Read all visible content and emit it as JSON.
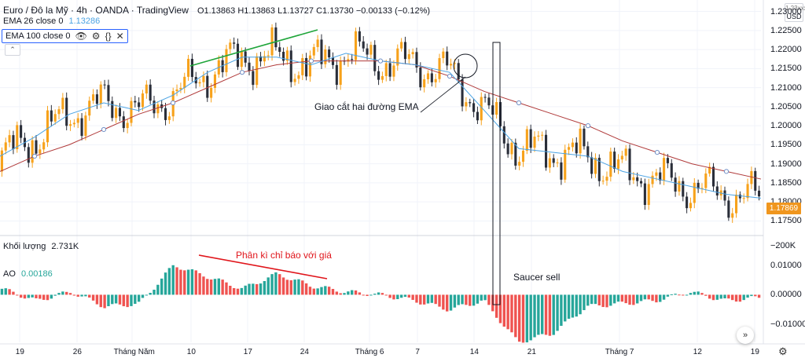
{
  "header": {
    "symbol": "Euro / Đô la Mỹ · 4h · OANDA · TradingView",
    "open_label": "O",
    "open": "1.13863",
    "high_label": "H",
    "high": "1.13863",
    "low_label": "L",
    "low": "1.13727",
    "close_label": "C",
    "close": "1.13730",
    "change": "−0.00133 (−0.12%)"
  },
  "indicators": {
    "ema26_label": "EMA 26 close 0",
    "ema26_value": "1.13286",
    "ema100_label": "EMA 100 close 0",
    "ema100_icons": [
      "eye-icon",
      "settings-icon",
      "code-icon",
      "close-icon"
    ],
    "volume_label": "Khối lượng",
    "volume_value": "2.731K",
    "ao_label": "AO",
    "ao_value": "0.00186"
  },
  "price_axis": {
    "currency": "USD",
    "top_partial": "1.23xxx",
    "labels": [
      "1.23000",
      "1.22500",
      "1.22000",
      "1.21500",
      "1.21000",
      "1.20500",
      "1.20000",
      "1.19500",
      "1.19000",
      "1.18500",
      "1.18000",
      "1.17500"
    ],
    "last_price": "1.17869",
    "volume_label": "−200K",
    "ao_labels": [
      "0.01000",
      "0.00000",
      "−0.01000"
    ]
  },
  "time_axis": [
    "19",
    "26",
    "Tháng Năm",
    "10",
    "17",
    "24",
    "Tháng 6",
    "7",
    "14",
    "21",
    "Tháng 7",
    "12",
    "19"
  ],
  "annotations": {
    "ema_cross": "Giao cắt hai đường EMA",
    "divergence": "Phân kì chỉ báo với giá",
    "saucer": "Saucer sell"
  },
  "buttons": {
    "collapse": "⌃",
    "scroll_right": "»",
    "settings": "⚙"
  },
  "colors": {
    "up": "#f7a21b",
    "down": "#2a2e39",
    "ema26": "#4ba3e3",
    "ema100": "#b03a3a",
    "ao_up": "#26a69a",
    "ao_down": "#ef5350",
    "trend_green": "#1fa53a",
    "trend_red": "#e0151b",
    "last_price_bg": "#f0961e"
  },
  "chart_data": {
    "type": "candlestick",
    "timeframe": "4h",
    "series": [
      {
        "name": "EMA 26",
        "values": [
          1.192,
          1.197,
          1.203,
          1.206,
          1.204,
          1.208,
          1.214,
          1.218,
          1.218,
          1.216,
          1.219,
          1.217,
          1.216,
          1.214,
          1.204,
          1.194,
          1.193,
          1.192,
          1.188,
          1.186,
          1.184,
          1.182,
          1.181
        ]
      },
      {
        "name": "EMA 100",
        "values": [
          1.188,
          1.192,
          1.195,
          1.199,
          1.203,
          1.206,
          1.21,
          1.214,
          1.216,
          1.217,
          1.217,
          1.217,
          1.216,
          1.213,
          1.209,
          1.206,
          1.203,
          1.2,
          1.196,
          1.193,
          1.19,
          1.188,
          1.186
        ]
      },
      {
        "name": "AO",
        "values": [
          0.002,
          -0.002,
          0.001,
          -0.004,
          -0.003,
          0.01,
          0.006,
          0.002,
          0.007,
          0.003,
          0.001,
          0.0,
          -0.002,
          -0.005,
          -0.002,
          -0.016,
          -0.013,
          -0.004,
          -0.003,
          -0.002,
          0.001,
          -0.002,
          -0.001
        ]
      }
    ],
    "ylim": [
      1.172,
      1.233
    ],
    "ao_ylim": [
      -0.016,
      0.012
    ]
  }
}
